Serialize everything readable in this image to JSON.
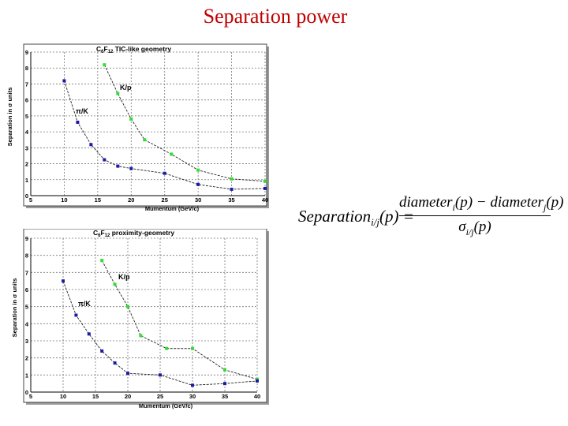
{
  "page": {
    "title": "Separation power"
  },
  "formula": {
    "lhs": "Separation",
    "lhs_sub": "i/j",
    "arg": "(p) =",
    "num_a": "diameter",
    "num_a_sub": "i",
    "num_mid": "(p) − diameter",
    "num_b_sub": "j",
    "num_end": "(p)",
    "den": "σ",
    "den_sub": "i/j",
    "den_end": "(p)"
  },
  "chart_data": [
    {
      "type": "line",
      "title_parts": [
        "C",
        "6",
        "F",
        "12",
        " TIC-like geometry"
      ],
      "xlabel": "Mumentum (GeV/c)",
      "ylabel": "Separation in σ units",
      "xlim": [
        5,
        40
      ],
      "ylim": [
        0,
        9
      ],
      "xticks": [
        5,
        10,
        15,
        20,
        25,
        30,
        35,
        40
      ],
      "yticks": [
        0,
        1,
        2,
        3,
        4,
        5,
        6,
        7,
        8,
        9
      ],
      "grid": true,
      "series": [
        {
          "name": "K/p",
          "color": "#33dd33",
          "x": [
            16,
            18,
            20,
            22,
            26,
            30,
            35,
            40
          ],
          "y": [
            8.2,
            6.4,
            4.8,
            3.5,
            2.6,
            1.6,
            1.05,
            0.9
          ]
        },
        {
          "name": "π/K",
          "color": "#1a1aa6",
          "x": [
            10,
            12,
            14,
            16,
            18,
            20,
            25,
            30,
            35,
            40
          ],
          "y": [
            7.2,
            4.6,
            3.2,
            2.25,
            1.85,
            1.7,
            1.4,
            0.7,
            0.4,
            0.45
          ]
        }
      ]
    },
    {
      "type": "line",
      "title_parts": [
        "C",
        "6",
        "F",
        "12",
        " proximity-geometry"
      ],
      "xlabel": "Mumentum (GeV/c)",
      "ylabel": "Separation in σ units",
      "xlim": [
        5,
        40
      ],
      "ylim": [
        0,
        9
      ],
      "xticks": [
        5,
        10,
        15,
        20,
        25,
        30,
        35,
        40
      ],
      "yticks": [
        0,
        1,
        2,
        3,
        4,
        5,
        6,
        7,
        8,
        9
      ],
      "grid": true,
      "series": [
        {
          "name": "K/p",
          "color": "#33dd33",
          "x": [
            16,
            18,
            20,
            22,
            26,
            30,
            35,
            40
          ],
          "y": [
            7.7,
            6.3,
            5.0,
            3.3,
            2.55,
            2.55,
            1.3,
            0.75
          ]
        },
        {
          "name": "π/K",
          "color": "#1a1aa6",
          "x": [
            10,
            12,
            14,
            16,
            18,
            20,
            25,
            30,
            35,
            40
          ],
          "y": [
            6.5,
            4.5,
            3.4,
            2.4,
            1.7,
            1.1,
            1.0,
            0.4,
            0.5,
            0.65
          ]
        }
      ]
    }
  ]
}
